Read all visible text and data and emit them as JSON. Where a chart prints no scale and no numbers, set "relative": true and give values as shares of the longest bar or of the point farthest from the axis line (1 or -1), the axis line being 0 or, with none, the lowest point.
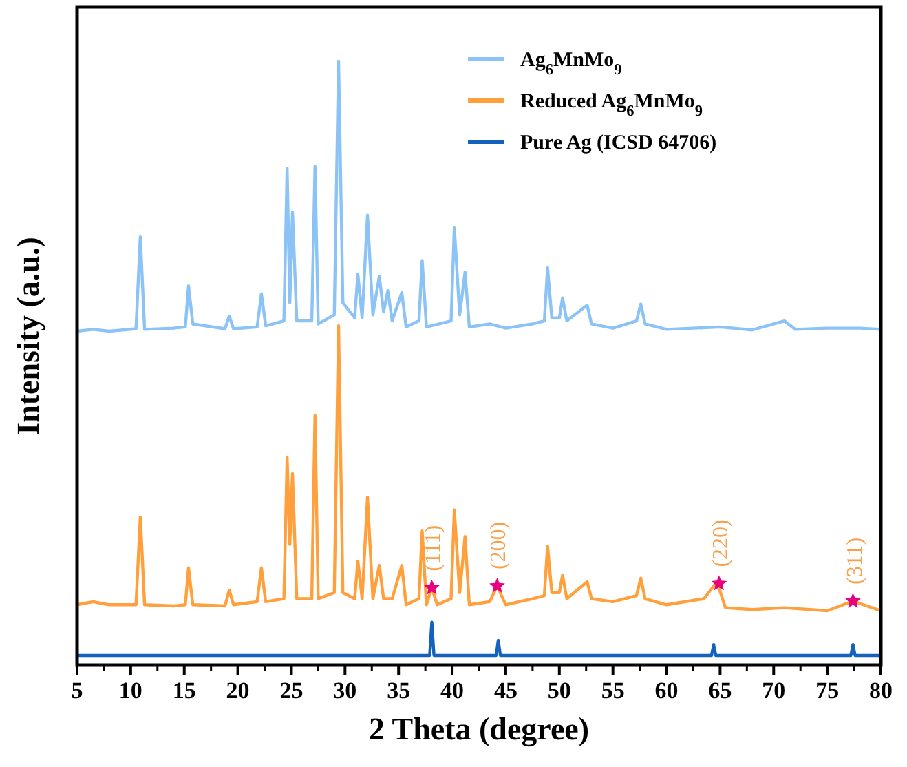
{
  "chart_data": {
    "type": "line",
    "relative": true,
    "xlabel": "2 Theta (degree)",
    "ylabel": "Intensity (a.u.)",
    "xlim": [
      5,
      80
    ],
    "xticks": [
      5,
      10,
      15,
      20,
      25,
      30,
      35,
      40,
      45,
      50,
      55,
      60,
      65,
      70,
      75,
      80
    ],
    "legend": "top right",
    "grid": false,
    "series": [
      {
        "name": "Ag$_{6}$MnMo$_{9}$",
        "color": "#8cc3f7",
        "x": [
          5,
          6.5,
          8,
          10.5,
          10.9,
          11.3,
          14,
          15.1,
          15.4,
          15.8,
          18.8,
          19.2,
          19.6,
          21.8,
          22.2,
          22.6,
          24.3,
          24.6,
          24.85,
          25.1,
          25.5,
          26.9,
          27.2,
          27.5,
          29.0,
          29.4,
          29.8,
          30.9,
          31.2,
          31.6,
          32.1,
          32.6,
          33.2,
          33.6,
          34.0,
          34.4,
          35.3,
          35.7,
          36.9,
          37.2,
          37.6,
          39.9,
          40.2,
          40.7,
          41.2,
          41.6,
          43.5,
          45,
          47.5,
          48.6,
          48.9,
          49.3,
          50.0,
          50.3,
          50.7,
          52.6,
          53,
          55,
          57.2,
          57.6,
          58.0,
          60,
          65,
          68,
          71,
          72,
          75,
          78,
          80
        ],
        "values": [
          0.553,
          0.556,
          0.553,
          0.557,
          0.709,
          0.556,
          0.558,
          0.56,
          0.628,
          0.565,
          0.557,
          0.578,
          0.557,
          0.56,
          0.615,
          0.562,
          0.57,
          0.823,
          0.6,
          0.75,
          0.57,
          0.57,
          0.826,
          0.565,
          0.58,
          1,
          0.6,
          0.575,
          0.647,
          0.575,
          0.745,
          0.58,
          0.644,
          0.585,
          0.62,
          0.57,
          0.617,
          0.56,
          0.57,
          0.67,
          0.56,
          0.57,
          0.725,
          0.58,
          0.651,
          0.56,
          0.565,
          0.558,
          0.565,
          0.57,
          0.658,
          0.575,
          0.575,
          0.608,
          0.57,
          0.596,
          0.565,
          0.558,
          0.57,
          0.598,
          0.565,
          0.556,
          0.56,
          0.555,
          0.57,
          0.556,
          0.558,
          0.558,
          0.556
        ]
      },
      {
        "name": "Reduced Ag$_{6}$MnMo$_{9}$",
        "color": "#ffa03c",
        "x": [
          5,
          6.5,
          8,
          10.5,
          10.9,
          11.3,
          14,
          15.1,
          15.4,
          15.8,
          18.8,
          19.2,
          19.6,
          21.8,
          22.2,
          22.6,
          24.3,
          24.6,
          24.85,
          25.1,
          25.5,
          26.9,
          27.2,
          27.5,
          29.0,
          29.4,
          29.8,
          30.9,
          31.2,
          31.6,
          32.1,
          32.6,
          33.2,
          33.6,
          34.4,
          35.3,
          35.7,
          36.9,
          37.2,
          37.6,
          38.1,
          38.6,
          39.9,
          40.2,
          40.7,
          41.2,
          41.6,
          43.5,
          44.2,
          45,
          47.5,
          48.6,
          48.9,
          49.3,
          50.0,
          50.3,
          50.7,
          52.6,
          53,
          55,
          57.2,
          57.6,
          58.0,
          60,
          63.5,
          64.7,
          65.5,
          68,
          71,
          75,
          77.4,
          80
        ],
        "values": [
          0.1,
          0.105,
          0.1,
          0.1,
          0.245,
          0.1,
          0.098,
          0.1,
          0.161,
          0.1,
          0.098,
          0.124,
          0.1,
          0.105,
          0.161,
          0.105,
          0.11,
          0.344,
          0.2,
          0.317,
          0.11,
          0.11,
          0.413,
          0.11,
          0.12,
          0.562,
          0.12,
          0.11,
          0.172,
          0.11,
          0.278,
          0.11,
          0.165,
          0.11,
          0.11,
          0.165,
          0.1,
          0.11,
          0.222,
          0.1,
          0.128,
          0.1,
          0.11,
          0.257,
          0.12,
          0.213,
          0.1,
          0.105,
          0.131,
          0.1,
          0.11,
          0.115,
          0.197,
          0.12,
          0.12,
          0.149,
          0.11,
          0.138,
          0.11,
          0.105,
          0.115,
          0.144,
          0.11,
          0.1,
          0.11,
          0.138,
          0.095,
          0.092,
          0.095,
          0.09,
          0.106,
          0.09
        ]
      },
      {
        "name": "Pure Ag (ICSD 64706)",
        "color": "#1461be",
        "x": [
          5,
          37.9,
          38.1,
          38.3,
          44.1,
          44.3,
          44.5,
          64.2,
          64.4,
          64.6,
          77.2,
          77.4,
          77.6,
          80
        ],
        "values": [
          0.016,
          0.016,
          0.071,
          0.016,
          0.016,
          0.041,
          0.016,
          0.016,
          0.034,
          0.016,
          0.016,
          0.034,
          0.016,
          0.016
        ]
      },
      {
        "type": "scatter",
        "marker": "star",
        "color": "#e6007e",
        "x": [
          38.1,
          44.2,
          64.9,
          77.4
        ],
        "values": [
          0.128,
          0.131,
          0.135,
          0.106
        ]
      }
    ],
    "annotations": [
      {
        "text": "(111)",
        "x": 38.1,
        "y": 0.128
      },
      {
        "text": "(200)",
        "x": 44.2,
        "y": 0.131
      },
      {
        "text": "(220)",
        "x": 64.9,
        "y": 0.135
      },
      {
        "text": "(311)",
        "x": 77.4,
        "y": 0.106
      }
    ]
  }
}
